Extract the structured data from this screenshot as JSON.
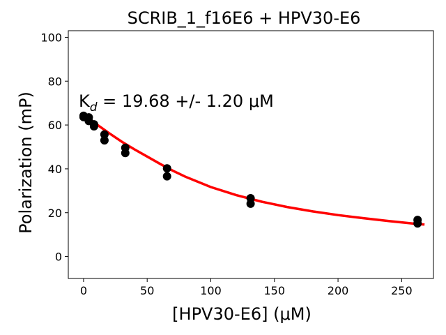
{
  "chart_data": {
    "type": "scatter",
    "title": "SCRIB_1_f16E6 + HPV30-E6",
    "xlabel": "[HPV30-E6] (μM)",
    "ylabel": "Polarization (mP)",
    "xlim": [
      -12,
      275
    ],
    "ylim": [
      -10,
      103
    ],
    "xticks": [
      0,
      50,
      100,
      150,
      200,
      250
    ],
    "yticks": [
      0,
      20,
      40,
      60,
      80,
      100
    ],
    "grid": false,
    "annotation": {
      "kd_value": "19.68",
      "kd_error": "1.20",
      "unit": "μM"
    },
    "point_color": "#000000",
    "fit_color": "#ff0000",
    "series": [
      {
        "kind": "points",
        "x": [
          0,
          0,
          4.1,
          4.1,
          8.2,
          8.2,
          16.4,
          16.4,
          32.8,
          32.8,
          65.6,
          65.6,
          131.3,
          131.3,
          262.5,
          262.5
        ],
        "y": [
          64.2,
          63.6,
          63.5,
          61.8,
          60.3,
          59.4,
          55.7,
          53.0,
          49.6,
          47.2,
          40.2,
          36.6,
          26.6,
          24.1,
          16.7,
          15.1
        ]
      },
      {
        "kind": "fit",
        "x": [
          0,
          5,
          10,
          20,
          30,
          40,
          50,
          60,
          70,
          80,
          100,
          120,
          140,
          160,
          180,
          200,
          220,
          240,
          260,
          268
        ],
        "y": [
          64.8,
          62.6,
          60.4,
          56.3,
          52.4,
          48.9,
          45.6,
          42.3,
          39.2,
          36.4,
          31.7,
          28.0,
          25.0,
          22.6,
          20.6,
          18.9,
          17.5,
          16.2,
          15.0,
          14.6
        ]
      }
    ]
  }
}
